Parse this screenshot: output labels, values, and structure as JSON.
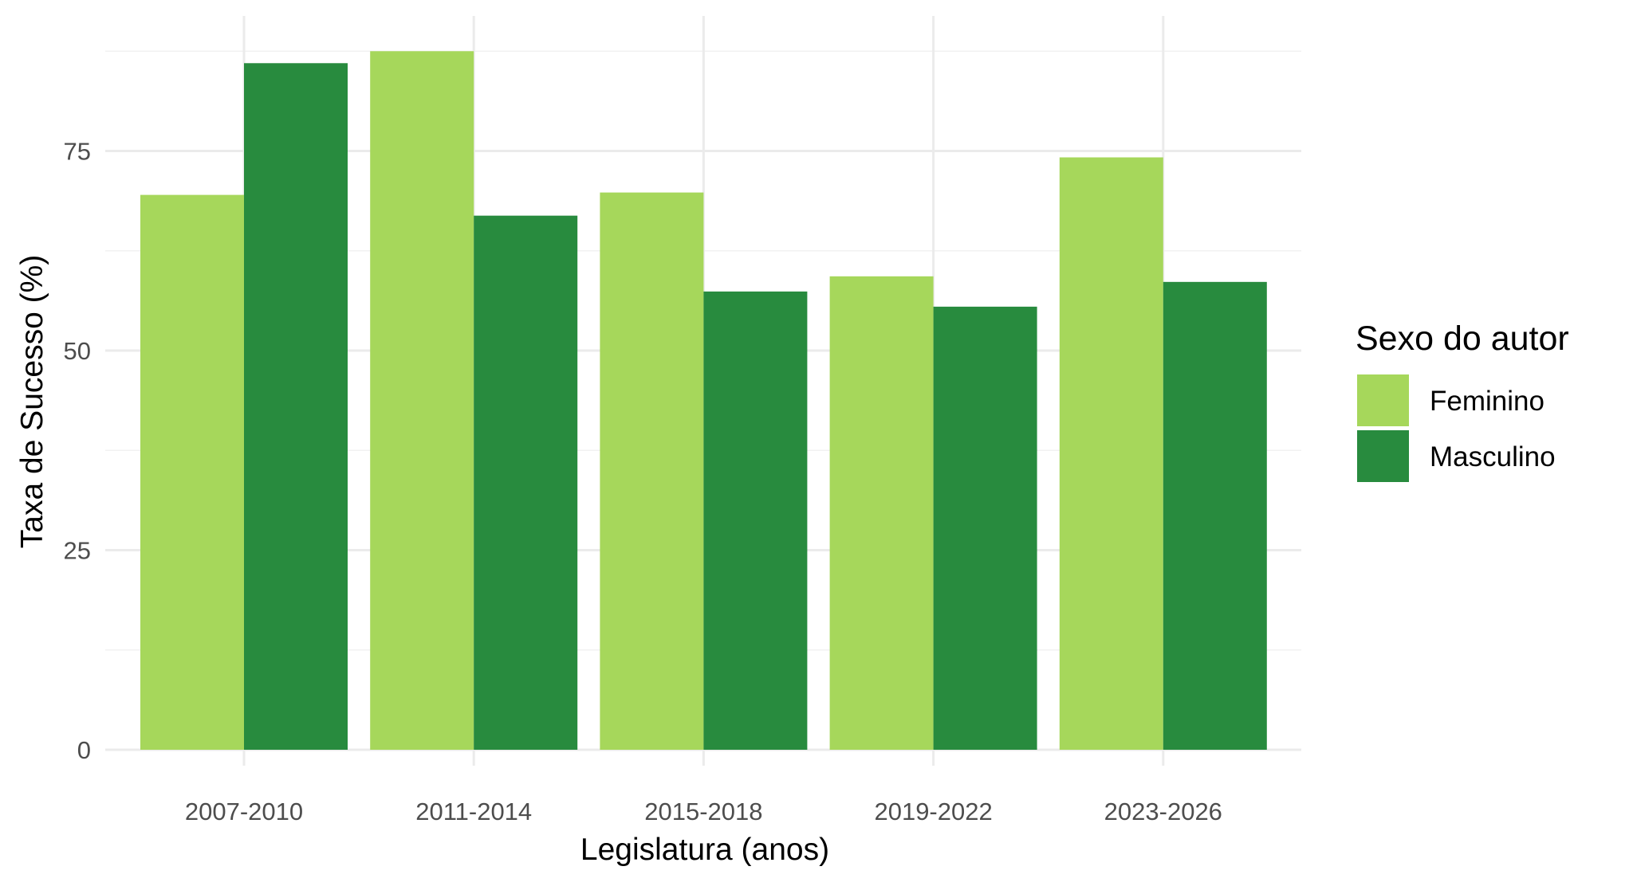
{
  "chart_data": {
    "type": "bar",
    "title": "",
    "xlabel": "Legislatura (anos)",
    "ylabel": "Taxa de Sucesso (%)",
    "categories": [
      "2007-2010",
      "2011-2014",
      "2015-2018",
      "2019-2022",
      "2023-2026"
    ],
    "series": [
      {
        "name": "Feminino",
        "color": "#a6d75b",
        "values": [
          69.5,
          87.5,
          69.8,
          59.3,
          74.2
        ]
      },
      {
        "name": "Masculino",
        "color": "#288b3e",
        "values": [
          86.0,
          66.9,
          57.4,
          55.5,
          58.6
        ]
      }
    ],
    "ylim": [
      0,
      90
    ],
    "yticks": [
      0,
      25,
      50,
      75
    ],
    "grid": true,
    "legend": {
      "title": "Sexo do autor",
      "position": "right"
    }
  }
}
